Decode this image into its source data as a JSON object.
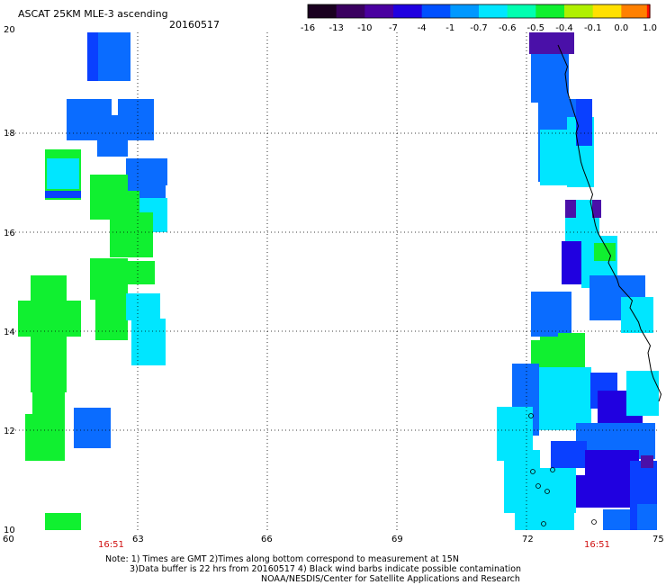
{
  "header": {
    "product": "ASCAT 25KM MLE-3 ascending",
    "date": "20160517"
  },
  "colorbar": {
    "labels": [
      "-16",
      "-13",
      "-10",
      "-7",
      "-4",
      "-1",
      "-0.7",
      "-0.6",
      "-0.5",
      "-0.4",
      "-0.1",
      "0.0",
      "1.0"
    ],
    "colors": [
      "#1a0020",
      "#3a0060",
      "#4a00a0",
      "#2000e0",
      "#0050ff",
      "#0098ff",
      "#00e6ff",
      "#00ffb0",
      "#10f030",
      "#b0f000",
      "#ffe000",
      "#ff8000",
      "#ff1000"
    ]
  },
  "axes": {
    "lon_labels": [
      "60",
      "63",
      "66",
      "69",
      "72",
      "75"
    ],
    "lat_labels": [
      "20",
      "18",
      "16",
      "14",
      "12",
      "10"
    ]
  },
  "times": [
    "16:51",
    "16:51"
  ],
  "notes": {
    "line1": "Note: 1) Times are GMT 2)Times along bottom correspond to measurement at 15N",
    "line2": "3)Data buffer is 22 hrs from 20160517 4) Black wind barbs indicate possible contamination",
    "line3": "NOAA/NESDIS/Center for Satellite Applications and Research"
  },
  "palette": {
    "green": "#10f030",
    "cyan": "#00e6ff",
    "mid_blue": "#0a6cff",
    "blue": "#0a40ff",
    "deep_blue": "#2000e0",
    "violet": "#4a10a8"
  }
}
